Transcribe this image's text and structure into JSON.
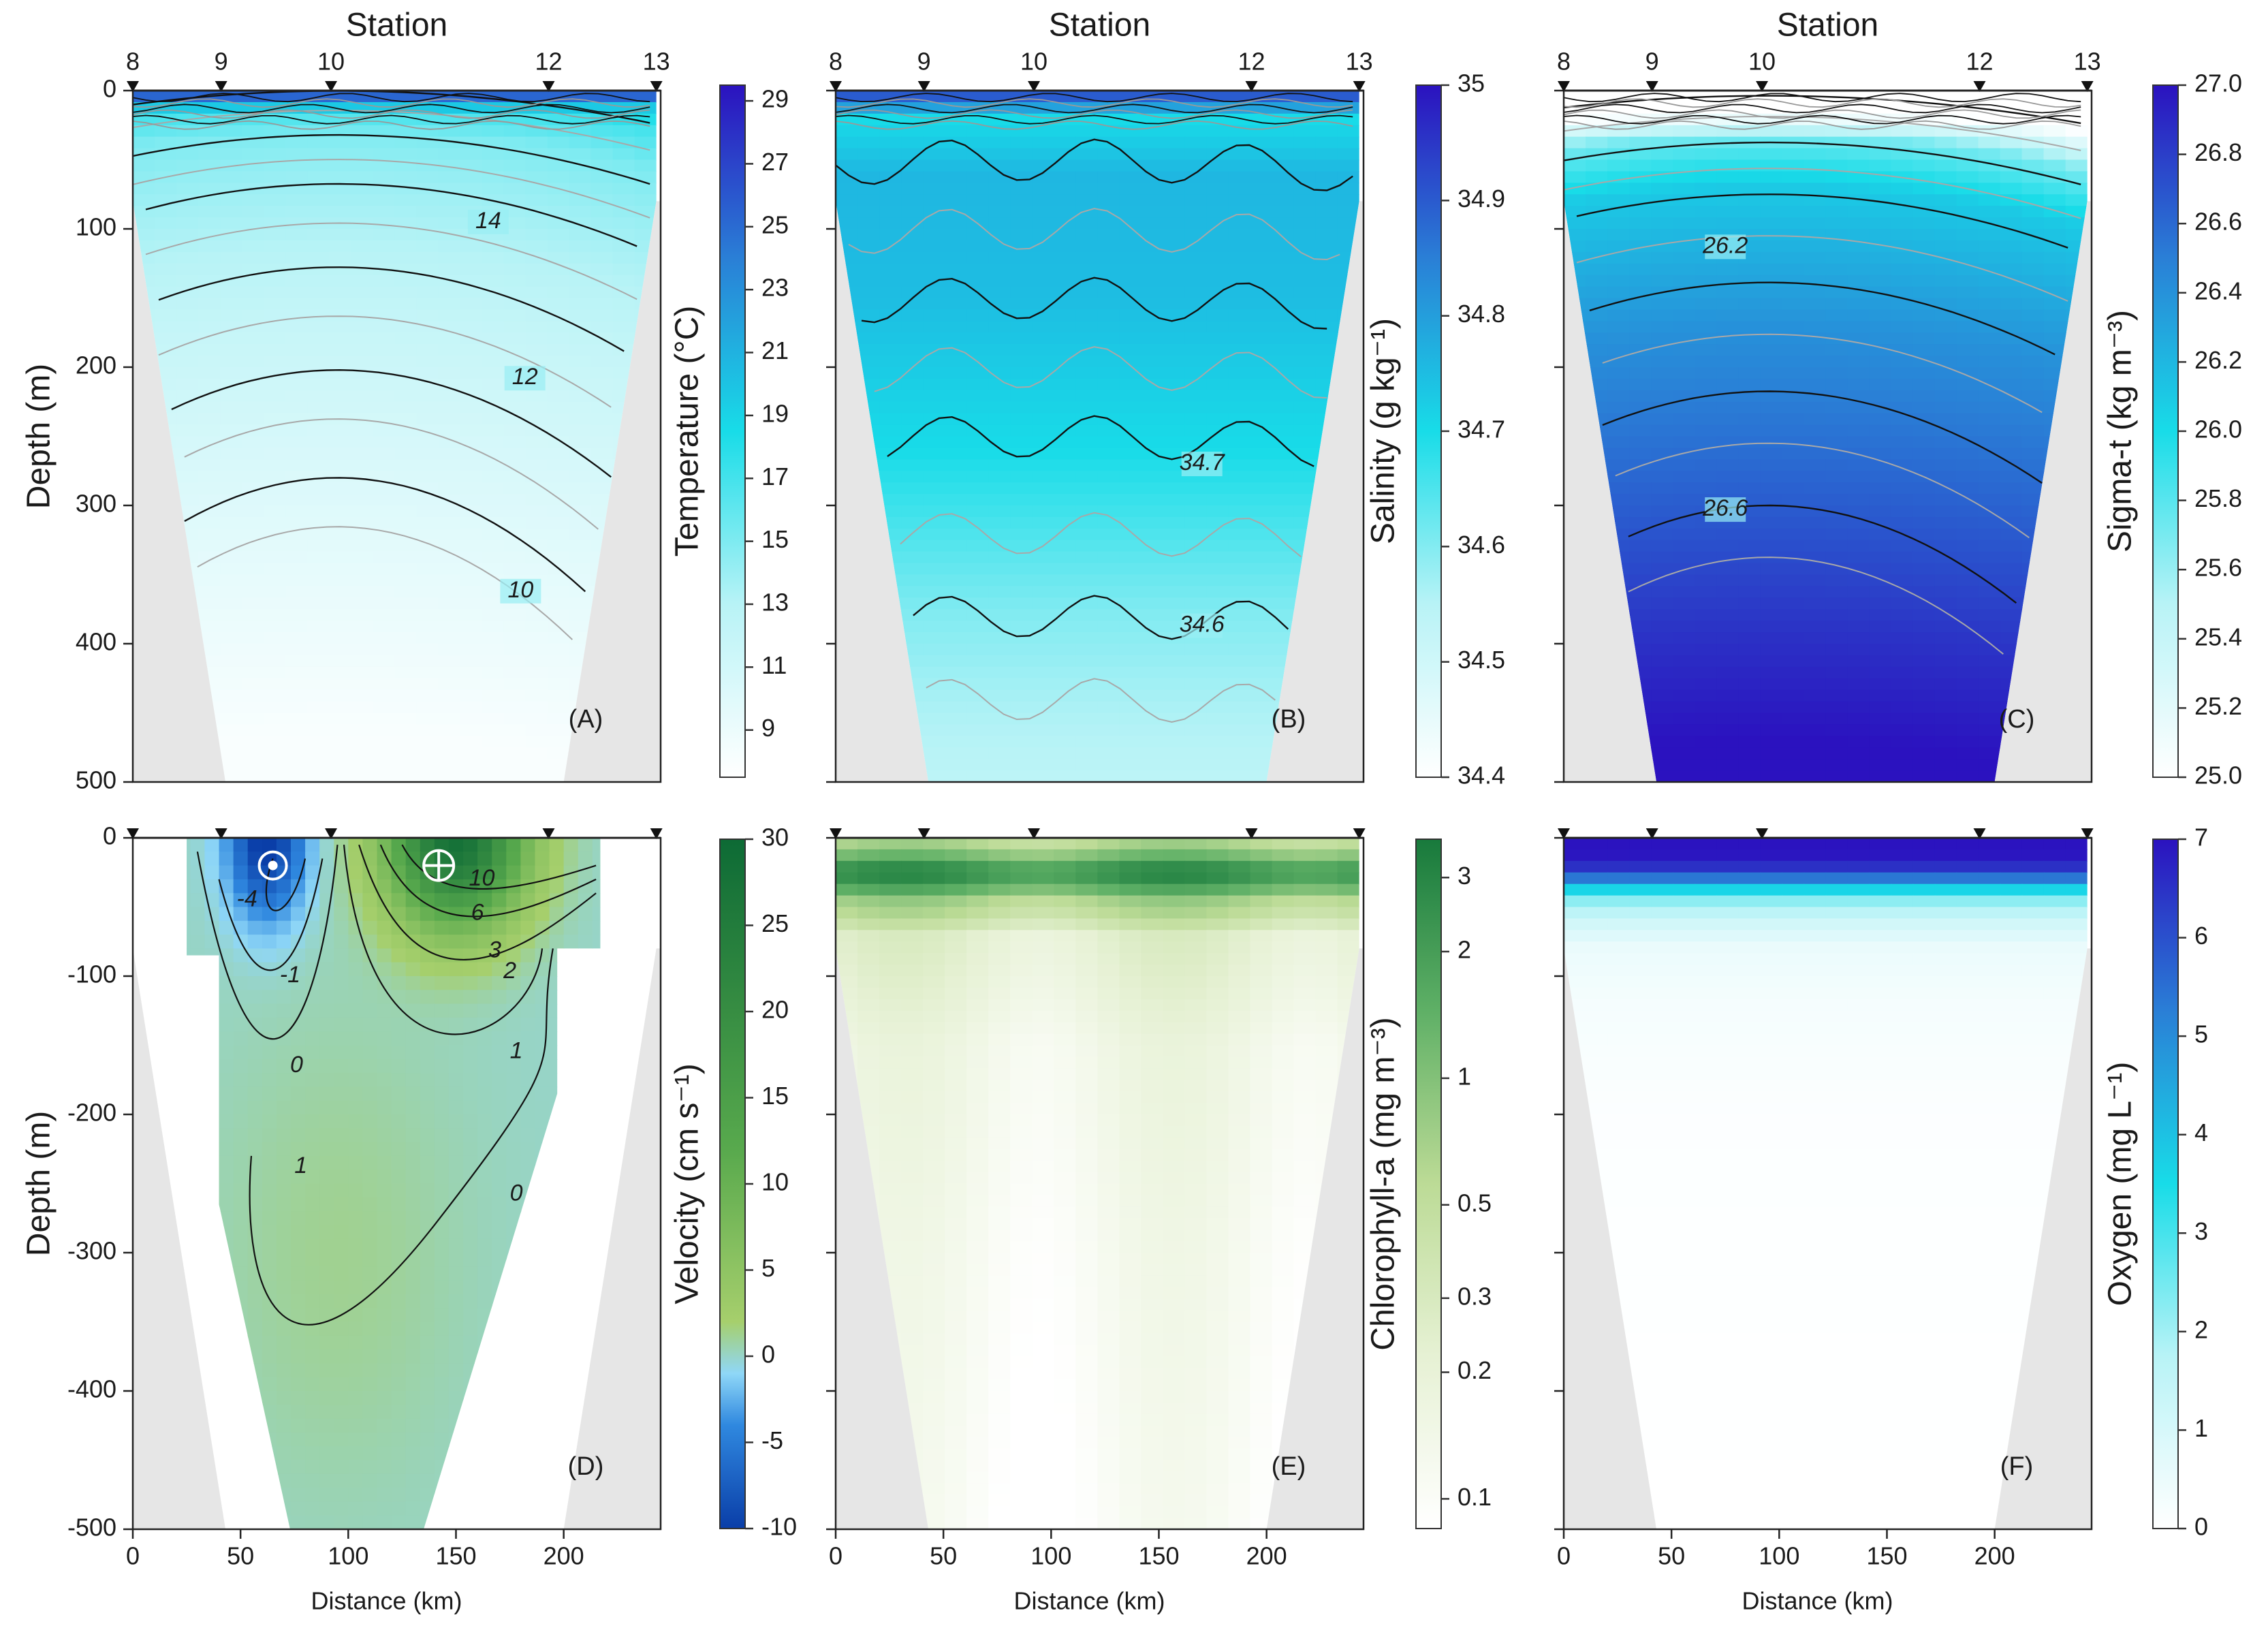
{
  "figure": {
    "station_title": "Station",
    "distance_label": "Distance (km)",
    "depth_label": "Depth (m)",
    "stations": [
      {
        "label": "8",
        "km": 0
      },
      {
        "label": "9",
        "km": 41
      },
      {
        "label": "10",
        "km": 92
      },
      {
        "label": "12",
        "km": 193
      },
      {
        "label": "13",
        "km": 243
      }
    ],
    "x_ticks": [
      "0",
      "50",
      "100",
      "150",
      "200"
    ],
    "x_tick_values": [
      0,
      50,
      100,
      150,
      200
    ],
    "x_range_km": [
      0,
      245
    ],
    "depth_range_m": [
      0,
      500
    ],
    "depth_ticks_top": [
      "0",
      "100",
      "200",
      "300",
      "400",
      "500"
    ],
    "depth_ticks_bottom": [
      "0",
      "-100",
      "-200",
      "-300",
      "-400",
      "-500"
    ],
    "depth_tick_values": [
      0,
      100,
      200,
      300,
      400,
      500
    ]
  },
  "chart_data": [
    {
      "type": "heatmap",
      "panel": "(A)",
      "variable": "Temperature",
      "colorbar_label": "Temperature (°C)",
      "colorbar_ticks": [
        "29",
        "27",
        "25",
        "23",
        "21",
        "19",
        "17",
        "15",
        "13",
        "11",
        "9"
      ],
      "colorbar_values": [
        29,
        27,
        25,
        23,
        21,
        19,
        17,
        15,
        13,
        11,
        9
      ],
      "range": [
        7.5,
        29.5
      ],
      "colors": [
        "#ffffff",
        "#b8f3f6",
        "#18dce8",
        "#2a7fd6",
        "#2b12bf"
      ],
      "contour_labels": [
        {
          "text": "14",
          "km": 165,
          "depth": 95
        },
        {
          "text": "12",
          "km": 182,
          "depth": 208
        },
        {
          "text": "10",
          "km": 180,
          "depth": 362
        }
      ],
      "profile": [
        [
          0,
          29
        ],
        [
          10,
          20
        ],
        [
          30,
          17
        ],
        [
          60,
          15
        ],
        [
          100,
          14
        ],
        [
          150,
          13
        ],
        [
          200,
          12
        ],
        [
          300,
          10.5
        ],
        [
          400,
          9.2
        ],
        [
          500,
          8
        ]
      ],
      "dome": 35
    },
    {
      "type": "heatmap",
      "panel": "(B)",
      "variable": "Salinity",
      "colorbar_label": "Salinity (g kg⁻¹)",
      "colorbar_ticks": [
        "35",
        "34.9",
        "34.8",
        "34.7",
        "34.6",
        "34.5",
        "34.4"
      ],
      "colorbar_values": [
        35,
        34.9,
        34.8,
        34.7,
        34.6,
        34.5,
        34.4
      ],
      "range": [
        34.4,
        35
      ],
      "colors": [
        "#ffffff",
        "#b8f3f6",
        "#18dce8",
        "#2a7fd6",
        "#2b12bf"
      ],
      "contour_labels": [
        {
          "text": "34.7",
          "km": 170,
          "depth": 270
        },
        {
          "text": "34.6",
          "km": 170,
          "depth": 387
        }
      ],
      "profile": [
        [
          0,
          34.95
        ],
        [
          20,
          34.7
        ],
        [
          60,
          34.76
        ],
        [
          150,
          34.75
        ],
        [
          260,
          34.7
        ],
        [
          380,
          34.6
        ],
        [
          450,
          34.56
        ],
        [
          500,
          34.54
        ]
      ],
      "dome": 0
    },
    {
      "type": "heatmap",
      "panel": "(C)",
      "variable": "Sigma-t",
      "colorbar_label": "Sigma-t (kg m⁻³)",
      "colorbar_ticks": [
        "27.0",
        "26.8",
        "26.6",
        "26.4",
        "26.2",
        "26.0",
        "25.8",
        "25.6",
        "25.4",
        "25.2",
        "25.0"
      ],
      "colorbar_values": [
        27,
        26.8,
        26.6,
        26.4,
        26.2,
        26,
        25.8,
        25.6,
        25.4,
        25.2,
        25
      ],
      "range": [
        25,
        27
      ],
      "colors": [
        "#ffffff",
        "#b8f3f6",
        "#18dce8",
        "#2a7fd6",
        "#2b12bf"
      ],
      "contour_labels": [
        {
          "text": "26.2",
          "km": 75,
          "depth": 113
        },
        {
          "text": "26.6",
          "km": 75,
          "depth": 303
        }
      ],
      "profile": [
        [
          0,
          21
        ],
        [
          30,
          25
        ],
        [
          60,
          25.7
        ],
        [
          100,
          26.1
        ],
        [
          200,
          26.4
        ],
        [
          300,
          26.6
        ],
        [
          420,
          26.85
        ],
        [
          500,
          27
        ]
      ],
      "dome": 30
    },
    {
      "type": "heatmap",
      "panel": "(D)",
      "variable": "Velocity",
      "colorbar_label": "Velocity (cm s⁻¹)",
      "colorbar_ticks": [
        "30",
        "25",
        "20",
        "15",
        "10",
        "5",
        "0",
        "-5",
        "-10"
      ],
      "colorbar_values": [
        30,
        25,
        20,
        15,
        10,
        5,
        0,
        -5,
        -10
      ],
      "range": [
        -10,
        30
      ],
      "colors": [
        "#0a3ea8",
        "#2f88df",
        "#8fd7f7",
        "#a6cf6c",
        "#58a94d",
        "#0d6a35"
      ],
      "stops": [
        -10,
        -4,
        -1,
        2,
        12,
        30
      ],
      "markers": [
        "out-of-page-symbol",
        "into-page-symbol"
      ],
      "contour_labels": [
        {
          "text": "-4",
          "km": 53,
          "depth": 45
        },
        {
          "text": "-1",
          "km": 73,
          "depth": 100
        },
        {
          "text": "0",
          "km": 76,
          "depth": 165
        },
        {
          "text": "1",
          "km": 78,
          "depth": 238
        },
        {
          "text": "10",
          "km": 162,
          "depth": 30
        },
        {
          "text": "6",
          "km": 160,
          "depth": 55
        },
        {
          "text": "3",
          "km": 168,
          "depth": 82
        },
        {
          "text": "2",
          "km": 175,
          "depth": 97
        },
        {
          "text": "1",
          "km": 178,
          "depth": 155
        },
        {
          "text": "0",
          "km": 178,
          "depth": 258
        }
      ]
    },
    {
      "type": "heatmap",
      "panel": "(E)",
      "variable": "Chlorophyll-a",
      "colorbar_label": "Chlorophyll-a (mg m⁻³)",
      "colorbar_ticks": [
        "3",
        "2",
        "1",
        "0.5",
        "0.3",
        "0.2",
        "0.1"
      ],
      "colorbar_values": [
        3,
        2,
        1,
        0.5,
        0.3,
        0.2,
        0.1
      ],
      "scale": "log",
      "range": [
        0.085,
        3.7
      ],
      "colors": [
        "#ffffff",
        "#e6f1d4",
        "#bcdb96",
        "#5fb066",
        "#187a3c"
      ],
      "profile": [
        [
          0,
          0.4
        ],
        [
          15,
          1.2
        ],
        [
          25,
          2.8
        ],
        [
          35,
          1.6
        ],
        [
          45,
          0.7
        ],
        [
          70,
          0.24
        ],
        [
          150,
          0.15
        ],
        [
          300,
          0.12
        ],
        [
          500,
          0.1
        ]
      ]
    },
    {
      "type": "heatmap",
      "panel": "(F)",
      "variable": "Oxygen",
      "colorbar_label": "Oxygen (mg L⁻¹)",
      "colorbar_ticks": [
        "7",
        "6",
        "5",
        "4",
        "3",
        "2",
        "1",
        "0"
      ],
      "colorbar_values": [
        7,
        6,
        5,
        4,
        3,
        2,
        1,
        0
      ],
      "range": [
        0,
        7
      ],
      "colors": [
        "#ffffff",
        "#b8f3f6",
        "#18dce8",
        "#2a7fd6",
        "#2b12bf"
      ],
      "profile": [
        [
          0,
          7
        ],
        [
          18,
          6.9
        ],
        [
          32,
          5
        ],
        [
          42,
          2.5
        ],
        [
          60,
          1.2
        ],
        [
          80,
          0.5
        ],
        [
          120,
          0.25
        ],
        [
          200,
          0.08
        ],
        [
          500,
          0
        ]
      ]
    }
  ]
}
